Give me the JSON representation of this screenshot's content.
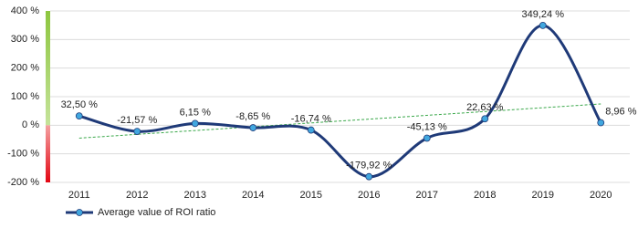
{
  "chart_data": {
    "type": "line",
    "categories": [
      "2011",
      "2012",
      "2013",
      "2014",
      "2015",
      "2016",
      "2017",
      "2018",
      "2019",
      "2020"
    ],
    "series": [
      {
        "name": "Average value of ROI ratio",
        "color": "#1f3a78",
        "marker_color": "#41a7df",
        "values": [
          32.5,
          -21.57,
          6.15,
          -8.65,
          -16.74,
          -179.92,
          -45.13,
          22.63,
          349.24,
          8.96
        ],
        "value_labels": [
          "32,50 %",
          "-21,57 %",
          "6,15 %",
          "-8,65 %",
          "-16,74 %",
          "-179,92 %",
          "-45,13 %",
          "22,63 %",
          "349,24 %",
          "8,96 %"
        ]
      }
    ],
    "ylim": [
      -200,
      400
    ],
    "yticks": [
      {
        "value": -200,
        "label": "-200 %"
      },
      {
        "value": -100,
        "label": "-100 %"
      },
      {
        "value": 0,
        "label": "0 %"
      },
      {
        "value": 100,
        "label": "100 %"
      },
      {
        "value": 200,
        "label": "200 %"
      },
      {
        "value": 300,
        "label": "300 %"
      },
      {
        "value": 400,
        "label": "400 %"
      }
    ],
    "grid": true,
    "trendline": true,
    "trend_color": "#3aa84a",
    "legend": "bottom-left"
  }
}
